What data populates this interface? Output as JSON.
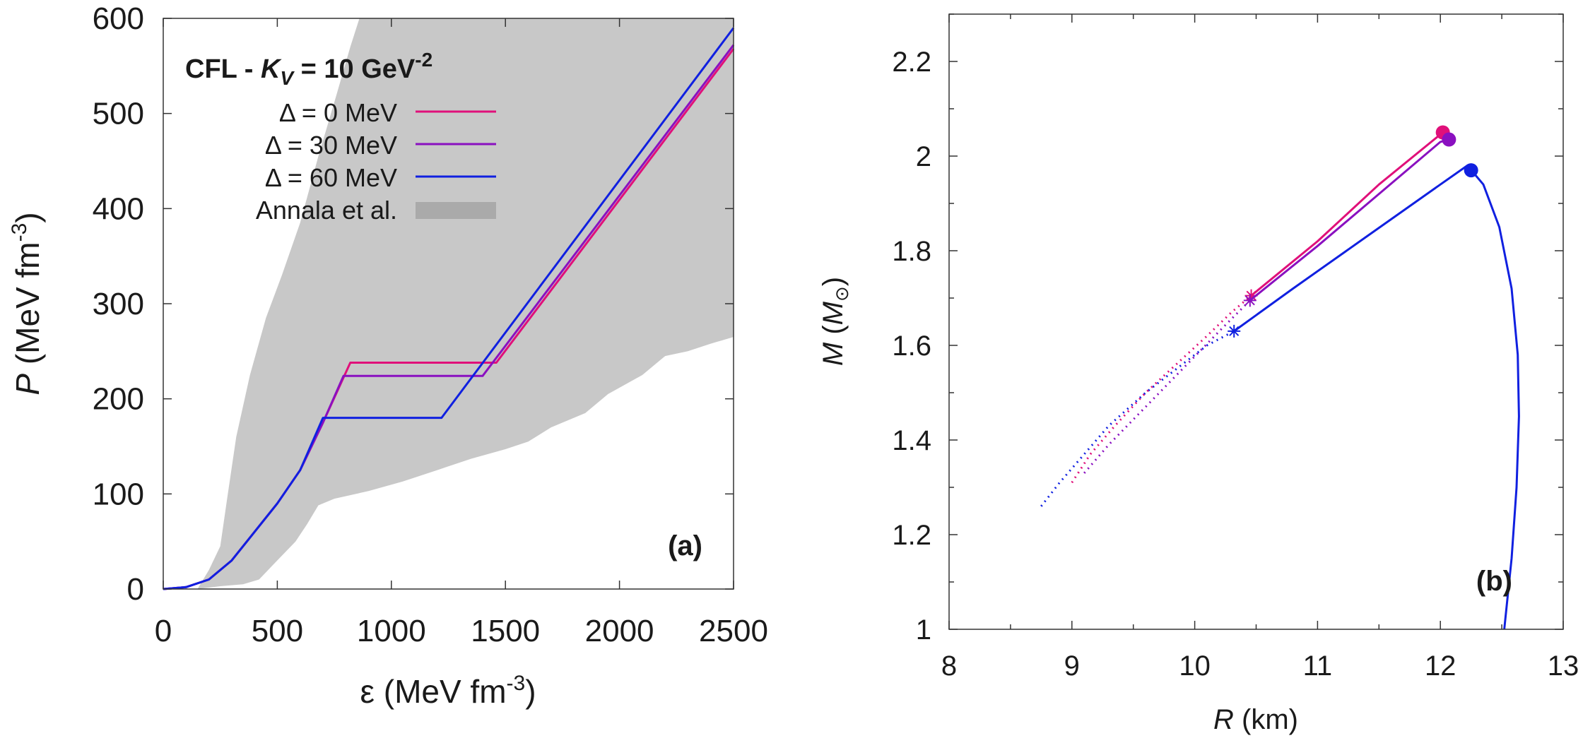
{
  "chart_data": [
    {
      "type": "line",
      "panel_label": "(a)",
      "xlabel": {
        "symbol": "ε",
        "unit_pre": " (MeV fm",
        "unit_exp": "-3",
        "unit_post": ")"
      },
      "ylabel": {
        "symbol": "P",
        "unit_pre": " (MeV fm",
        "unit_exp": "-3",
        "unit_post": ")"
      },
      "xlim": [
        0,
        2500
      ],
      "ylim": [
        0,
        600
      ],
      "xticks": [
        0,
        500,
        1000,
        1500,
        2000,
        2500
      ],
      "yticks": [
        0,
        100,
        200,
        300,
        400,
        500,
        600
      ],
      "legend": {
        "title_prefix": "CFL - ",
        "title_K": "K",
        "title_sub": "V",
        "title_mid": " = 10 GeV",
        "title_exp": "-2",
        "position": "top-left"
      },
      "band": {
        "name": "Annala et al.",
        "color": "#c8c8c8",
        "upper": [
          [
            150,
            0
          ],
          [
            200,
            20
          ],
          [
            250,
            45
          ],
          [
            280,
            95
          ],
          [
            320,
            160
          ],
          [
            380,
            225
          ],
          [
            450,
            285
          ],
          [
            520,
            330
          ],
          [
            600,
            385
          ],
          [
            680,
            455
          ],
          [
            760,
            520
          ],
          [
            820,
            570
          ],
          [
            860,
            600
          ],
          [
            2500,
            600
          ]
        ],
        "lower": [
          [
            2500,
            265
          ],
          [
            2400,
            258
          ],
          [
            2300,
            250
          ],
          [
            2200,
            245
          ],
          [
            2100,
            225
          ],
          [
            1950,
            205
          ],
          [
            1850,
            185
          ],
          [
            1700,
            170
          ],
          [
            1600,
            155
          ],
          [
            1500,
            147
          ],
          [
            1350,
            137
          ],
          [
            1200,
            125
          ],
          [
            1050,
            113
          ],
          [
            900,
            103
          ],
          [
            750,
            95
          ],
          [
            680,
            88
          ],
          [
            630,
            68
          ],
          [
            580,
            50
          ],
          [
            480,
            25
          ],
          [
            420,
            10
          ],
          [
            350,
            5
          ],
          [
            250,
            3
          ],
          [
            150,
            0
          ]
        ]
      },
      "series": [
        {
          "name": "Δ = 0 MeV",
          "color": "#e0107a",
          "points": [
            [
              0,
              0
            ],
            [
              100,
              2
            ],
            [
              200,
              10
            ],
            [
              300,
              30
            ],
            [
              400,
              60
            ],
            [
              500,
              90
            ],
            [
              600,
              125
            ],
            [
              700,
              175
            ],
            [
              820,
              238
            ],
            [
              1460,
              238
            ],
            [
              2500,
              568
            ]
          ]
        },
        {
          "name": "Δ = 30 MeV",
          "color": "#8a10c0",
          "points": [
            [
              0,
              0
            ],
            [
              100,
              2
            ],
            [
              200,
              10
            ],
            [
              300,
              30
            ],
            [
              400,
              60
            ],
            [
              500,
              90
            ],
            [
              600,
              125
            ],
            [
              700,
              175
            ],
            [
              790,
              224
            ],
            [
              1400,
              224
            ],
            [
              2500,
              572
            ]
          ]
        },
        {
          "name": "Δ = 60 MeV",
          "color": "#1020e0",
          "points": [
            [
              0,
              0
            ],
            [
              100,
              2
            ],
            [
              200,
              10
            ],
            [
              300,
              30
            ],
            [
              400,
              60
            ],
            [
              500,
              90
            ],
            [
              600,
              125
            ],
            [
              700,
              180
            ],
            [
              1220,
              180
            ],
            [
              2500,
              590
            ]
          ]
        }
      ]
    },
    {
      "type": "line",
      "panel_label": "(b)",
      "xlabel": {
        "symbol": "R",
        "unit": " (km)"
      },
      "ylabel": {
        "symbol": "M",
        "unit_pre": " (",
        "unit_sym": "M",
        "unit_sub": "⊙",
        "unit_post": ")"
      },
      "xlim": [
        8,
        13
      ],
      "ylim": [
        1,
        2.3
      ],
      "xticks": [
        8,
        9,
        10,
        11,
        12,
        13
      ],
      "yticks": [
        "1",
        "1.2",
        "1.4",
        "1.6",
        "1.8",
        "2",
        "2.2"
      ],
      "series": [
        {
          "name": "Δ = 0 MeV",
          "color": "#e0107a",
          "dotted": [
            [
              9.0,
              1.31
            ],
            [
              9.15,
              1.37
            ],
            [
              9.35,
              1.43
            ],
            [
              9.6,
              1.5
            ],
            [
              9.85,
              1.56
            ],
            [
              10.1,
              1.62
            ],
            [
              10.3,
              1.67
            ],
            [
              10.46,
              1.705
            ]
          ],
          "solid": [
            [
              10.46,
              1.705
            ],
            [
              11.0,
              1.82
            ],
            [
              11.5,
              1.94
            ],
            [
              12.02,
              2.05
            ]
          ],
          "star": [
            10.46,
            1.705
          ],
          "max": [
            12.02,
            2.05
          ]
        },
        {
          "name": "Δ = 30 MeV",
          "color": "#8a10c0",
          "dotted": [
            [
              9.1,
              1.33
            ],
            [
              9.3,
              1.39
            ],
            [
              9.6,
              1.47
            ],
            [
              9.9,
              1.55
            ],
            [
              10.2,
              1.63
            ],
            [
              10.45,
              1.695
            ]
          ],
          "solid": [
            [
              10.45,
              1.695
            ],
            [
              11.0,
              1.81
            ],
            [
              11.5,
              1.92
            ],
            [
              12.0,
              2.03
            ],
            [
              12.07,
              2.035
            ]
          ],
          "star": [
            10.45,
            1.695
          ],
          "max": [
            12.07,
            2.035
          ]
        },
        {
          "name": "Δ = 60 MeV",
          "color": "#1020e0",
          "dotted": [
            [
              8.75,
              1.26
            ],
            [
              8.9,
              1.31
            ],
            [
              9.1,
              1.37
            ],
            [
              9.3,
              1.43
            ],
            [
              9.6,
              1.5
            ],
            [
              9.9,
              1.56
            ],
            [
              10.1,
              1.6
            ],
            [
              10.32,
              1.63
            ]
          ],
          "solid": [
            [
              10.32,
              1.63
            ],
            [
              10.8,
              1.72
            ],
            [
              11.4,
              1.83
            ],
            [
              12.0,
              1.94
            ],
            [
              12.22,
              1.98
            ],
            [
              12.35,
              1.94
            ],
            [
              12.48,
              1.85
            ],
            [
              12.58,
              1.72
            ],
            [
              12.63,
              1.58
            ],
            [
              12.64,
              1.45
            ],
            [
              12.62,
              1.3
            ],
            [
              12.58,
              1.15
            ],
            [
              12.52,
              1.0
            ]
          ],
          "star": [
            10.32,
            1.63
          ],
          "max": [
            12.25,
            1.97
          ]
        }
      ]
    }
  ]
}
